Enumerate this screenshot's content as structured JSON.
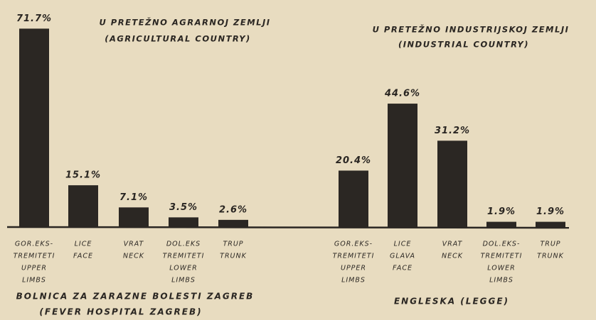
{
  "chart_data": [
    {
      "type": "bar",
      "title": "U PRETEŽNO AGRARNOJ ZEMLJI",
      "subtitle": "(AGRICULTURAL COUNTRY)",
      "caption": [
        "BOLNICA ZA ZARAZNE BOLESTI ZAGREB",
        "(FEVER HOSPITAL ZAGREB)"
      ],
      "color": "#2b2723",
      "categories": [
        [
          "GOR.EKS-",
          "TREMITETI",
          "UPPER",
          "LIMBS"
        ],
        [
          "LICE",
          "FACE"
        ],
        [
          "VRAT",
          "NECK"
        ],
        [
          "DOL.EKS",
          "TREMITETI",
          "LOWER",
          "LIMBS"
        ],
        [
          "TRUP",
          "TRUNK"
        ]
      ],
      "values": [
        71.7,
        15.1,
        7.1,
        3.5,
        2.6
      ],
      "value_labels": [
        "71.7%",
        "15.1%",
        "7.1%",
        "3.5%",
        "2.6%"
      ]
    },
    {
      "type": "bar",
      "title": "U PRETEŽNO INDUSTRIJSKOJ ZEMLJI",
      "subtitle": "(INDUSTRIAL COUNTRY)",
      "caption": [
        "ENGLESKA (LEGGE)"
      ],
      "color": "#2b2723",
      "categories": [
        [
          "GOR.EKS-",
          "TREMITETI",
          "UPPER",
          "LIMBS"
        ],
        [
          "LICE",
          "GLAVA",
          "FACE"
        ],
        [
          "VRAT",
          "NECK"
        ],
        [
          "DOL.EKS-",
          "TREMITETI",
          "LOWER",
          "LIMBS"
        ],
        [
          "TRUP",
          "TRUNK"
        ]
      ],
      "values": [
        20.4,
        44.6,
        31.2,
        1.9,
        1.9
      ],
      "value_labels": [
        "20.4%",
        "44.6%",
        "31.2%",
        "1.9%",
        "1.9%"
      ]
    }
  ]
}
